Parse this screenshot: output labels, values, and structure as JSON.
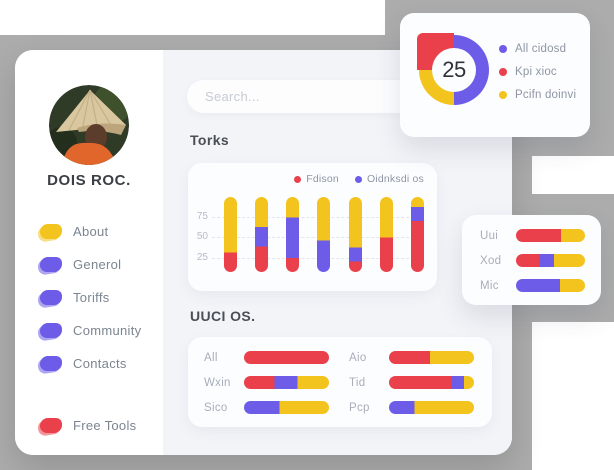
{
  "colors": {
    "red": "#E9404B",
    "purple": "#6C5CE7",
    "yellow": "#F2C41D",
    "backdrop": "#ACACAC"
  },
  "profile": {
    "name": "DOIS ROC."
  },
  "nav": {
    "items": [
      {
        "label": "About",
        "color": "yellow"
      },
      {
        "label": "Generol",
        "color": "purple"
      },
      {
        "label": "Toriffs",
        "color": "purple"
      },
      {
        "label": "Community",
        "color": "purple"
      },
      {
        "label": "Contacts",
        "color": "purple"
      }
    ],
    "footer_item": {
      "label": "Free Tools",
      "color": "red"
    }
  },
  "search": {
    "placeholder": "Search..."
  },
  "sections": {
    "bar_chart_title": "Torks",
    "hbar_title": "UUCI OS."
  },
  "chart_data": [
    {
      "type": "pie",
      "variant": "donut",
      "center_label": "25",
      "slices": [
        {
          "name": "All cidosd",
          "color": "purple",
          "value": 50
        },
        {
          "name": "Pcifn doinvi",
          "color": "yellow",
          "value": 25
        },
        {
          "name": "Kpi xioc",
          "color": "red",
          "value": 25
        }
      ],
      "legend": [
        {
          "label": "All cidosd",
          "color": "purple"
        },
        {
          "label": "Kpi xioc",
          "color": "red"
        },
        {
          "label": "Pcifn doinvi",
          "color": "yellow"
        }
      ],
      "legend_position": "right"
    },
    {
      "type": "bar",
      "variant": "stacked-vertical-pill",
      "title": "Torks",
      "legend": [
        {
          "label": "Fdison",
          "color": "red"
        },
        {
          "label": "Oidnksdi os",
          "color": "purple"
        }
      ],
      "y_ticks": [
        "75",
        "50",
        "25"
      ],
      "ylim": [
        0,
        100
      ],
      "grid": "dashed-horizontal",
      "bars": [
        {
          "segments": [
            {
              "color": "red",
              "pct": 26
            },
            {
              "color": "yellow",
              "pct": 74
            }
          ]
        },
        {
          "segments": [
            {
              "color": "red",
              "pct": 34
            },
            {
              "color": "purple",
              "pct": 26
            },
            {
              "color": "yellow",
              "pct": 40
            }
          ]
        },
        {
          "segments": [
            {
              "color": "red",
              "pct": 19
            },
            {
              "color": "purple",
              "pct": 54
            },
            {
              "color": "yellow",
              "pct": 27
            }
          ]
        },
        {
          "segments": [
            {
              "color": "purple",
              "pct": 42
            },
            {
              "color": "yellow",
              "pct": 58
            }
          ]
        },
        {
          "segments": [
            {
              "color": "red",
              "pct": 14
            },
            {
              "color": "purple",
              "pct": 19
            },
            {
              "color": "yellow",
              "pct": 67
            }
          ]
        },
        {
          "segments": [
            {
              "color": "red",
              "pct": 46
            },
            {
              "color": "yellow",
              "pct": 54
            }
          ]
        },
        {
          "segments": [
            {
              "color": "red",
              "pct": 68
            },
            {
              "color": "purple",
              "pct": 19
            },
            {
              "color": "yellow",
              "pct": 13
            }
          ]
        }
      ]
    },
    {
      "type": "bar",
      "variant": "stacked-horizontal-pill",
      "title": "UUCI OS.",
      "columns": 2,
      "rows": [
        {
          "label": "All",
          "segments": [
            {
              "color": "red",
              "pct": 100
            }
          ]
        },
        {
          "label": "Wxin",
          "segments": [
            {
              "color": "red",
              "pct": 36
            },
            {
              "color": "purple",
              "pct": 27
            },
            {
              "color": "yellow",
              "pct": 37
            }
          ]
        },
        {
          "label": "Sico",
          "segments": [
            {
              "color": "purple",
              "pct": 42
            },
            {
              "color": "yellow",
              "pct": 58
            }
          ]
        },
        {
          "label": "Aio",
          "segments": [
            {
              "color": "red",
              "pct": 48
            },
            {
              "color": "yellow",
              "pct": 52
            }
          ]
        },
        {
          "label": "Tid",
          "segments": [
            {
              "color": "red",
              "pct": 73
            },
            {
              "color": "purple",
              "pct": 15
            },
            {
              "color": "yellow",
              "pct": 12
            }
          ]
        },
        {
          "label": "Pcp",
          "segments": [
            {
              "color": "purple",
              "pct": 30
            },
            {
              "color": "yellow",
              "pct": 70
            }
          ]
        }
      ]
    },
    {
      "type": "bar",
      "variant": "stacked-horizontal-pill",
      "title": "",
      "rows": [
        {
          "label": "Uui",
          "segments": [
            {
              "color": "red",
              "pct": 65
            },
            {
              "color": "yellow",
              "pct": 35
            }
          ]
        },
        {
          "label": "Xod",
          "segments": [
            {
              "color": "red",
              "pct": 33
            },
            {
              "color": "purple",
              "pct": 22
            },
            {
              "color": "yellow",
              "pct": 45
            }
          ]
        },
        {
          "label": "Mic",
          "segments": [
            {
              "color": "purple",
              "pct": 64
            },
            {
              "color": "yellow",
              "pct": 36
            }
          ]
        }
      ]
    }
  ]
}
